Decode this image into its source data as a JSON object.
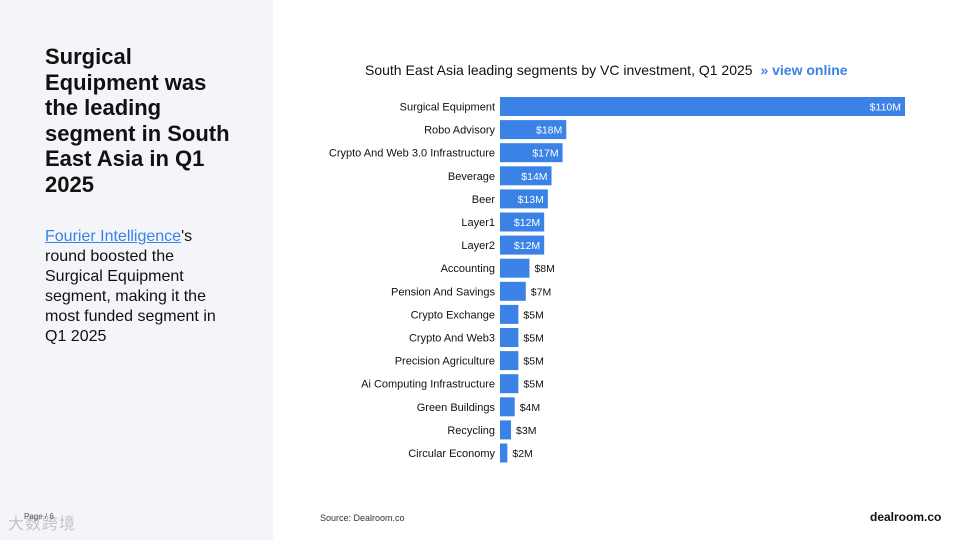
{
  "slide": {
    "headline": "Surgical Equipment was the leading segment in South East Asia in Q1 2025",
    "body_link": "Fourier Intelligence",
    "body_rest": "'s round boosted the Surgical Equipment segment, making it the most funded segment in Q1 2025",
    "page_label": "Page / 6",
    "watermark": "大数跨境",
    "source": "Source:  Dealroom.co",
    "brand": "dealroom.co"
  },
  "chart_title": {
    "text": "South East Asia leading segments by VC investment, Q1 2025",
    "link": "» view online"
  },
  "colors": {
    "bar": "#3b82e6",
    "link": "#3b82e6",
    "panel": "#f3f5f9"
  },
  "chart_data": {
    "type": "bar",
    "orientation": "horizontal",
    "title": "South East Asia leading segments by VC investment, Q1 2025",
    "categories": [
      "Surgical Equipment",
      "Robo Advisory",
      "Crypto And Web 3.0 Infrastructure",
      "Beverage",
      "Beer",
      "Layer1",
      "Layer2",
      "Accounting",
      "Pension And Savings",
      "Crypto Exchange",
      "Crypto And Web3",
      "Precision Agriculture",
      "Ai Computing Infrastructure",
      "Green Buildings",
      "Recycling",
      "Circular Economy"
    ],
    "values": [
      110,
      18,
      17,
      14,
      13,
      12,
      12,
      8,
      7,
      5,
      5,
      5,
      5,
      4,
      3,
      2
    ],
    "labels": [
      "$110M",
      "$18M",
      "$17M",
      "$14M",
      "$13M",
      "$12M",
      "$12M",
      "$8M",
      "$7M",
      "$5M",
      "$5M",
      "$5M",
      "$5M",
      "$4M",
      "$3M",
      "$2M"
    ],
    "xlim": [
      0,
      110
    ],
    "grid": false,
    "legend": "none"
  }
}
